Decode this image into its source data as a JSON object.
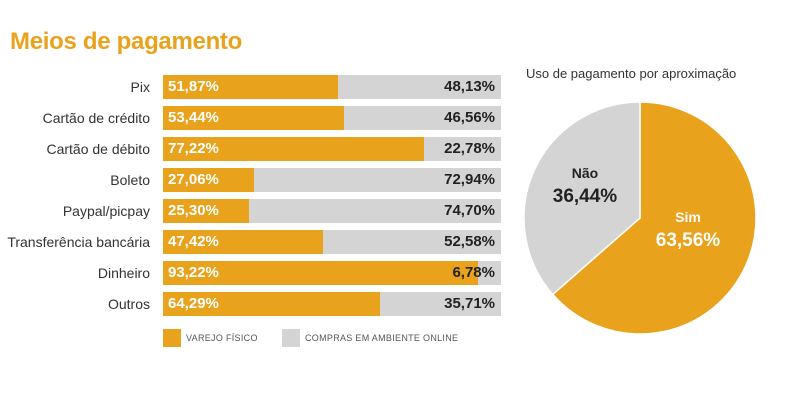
{
  "title": "Meios de pagamento",
  "colors": {
    "physical": "#e8a21c",
    "online": "#d4d4d4"
  },
  "chart_data": [
    {
      "type": "bar",
      "stacked": true,
      "orientation": "horizontal",
      "title": "Meios de pagamento",
      "categories": [
        "Pix",
        "Cartão de crédito",
        "Cartão de débito",
        "Boleto",
        "Paypal/picpay",
        "Transferência bancária",
        "Dinheiro",
        "Outros"
      ],
      "series": [
        {
          "name": "Varejo físico",
          "values": [
            51.87,
            53.44,
            77.22,
            27.06,
            25.3,
            47.42,
            93.22,
            64.29
          ],
          "labels": [
            "51,87%",
            "53,44%",
            "77,22%",
            "27,06%",
            "25,30%",
            "47,42%",
            "93,22%",
            "64,29%"
          ]
        },
        {
          "name": "Compras em ambiente online",
          "values": [
            48.13,
            46.56,
            22.78,
            72.94,
            74.7,
            52.58,
            6.78,
            35.71
          ],
          "labels": [
            "48,13%",
            "46,56%",
            "22,78%",
            "72,94%",
            "74,70%",
            "52,58%",
            "6,78%",
            "35,71%"
          ]
        }
      ],
      "xlim": [
        0,
        100
      ],
      "legend": "bottom"
    },
    {
      "type": "pie",
      "title": "Uso de pagamento por aproximação",
      "slices": [
        {
          "label": "Sim",
          "value": 63.56,
          "display": "63,56%",
          "color": "#e8a21c"
        },
        {
          "label": "Não",
          "value": 36.44,
          "display": "36,44%",
          "color": "#d4d4d4"
        }
      ]
    }
  ]
}
